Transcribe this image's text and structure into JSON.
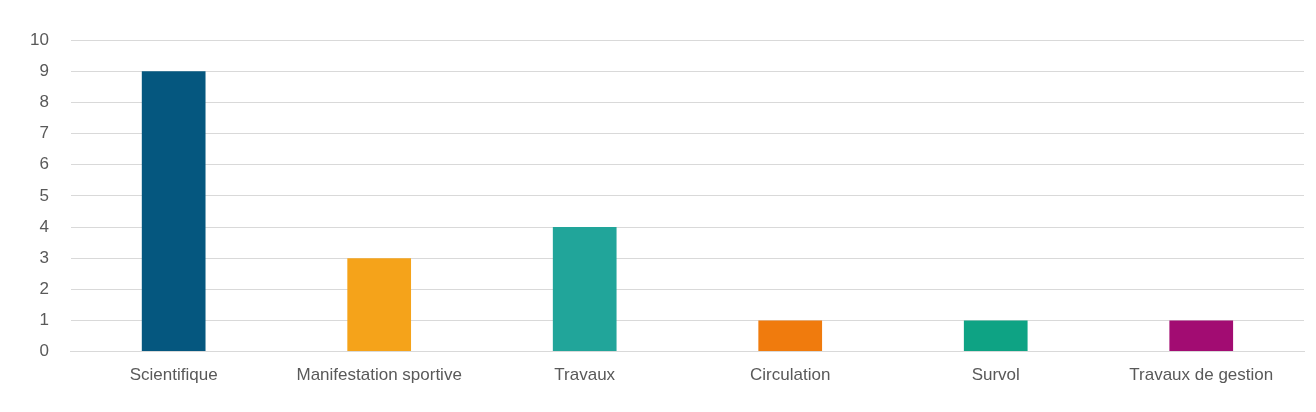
{
  "chart_data": {
    "type": "bar",
    "categories": [
      "Scientifique",
      "Manifestation sportive",
      "Travaux",
      "Circulation",
      "Survol",
      "Travaux de gestion"
    ],
    "values": [
      9,
      3,
      4,
      1,
      1,
      1
    ],
    "colors": [
      "#05577f",
      "#f5a31a",
      "#21a59a",
      "#f07b0d",
      "#0ea384",
      "#a20c72"
    ],
    "ylim": [
      0,
      10
    ],
    "yticks": [
      0,
      1,
      2,
      3,
      4,
      5,
      6,
      7,
      8,
      9,
      10
    ],
    "grid": "y",
    "legend": false
  }
}
